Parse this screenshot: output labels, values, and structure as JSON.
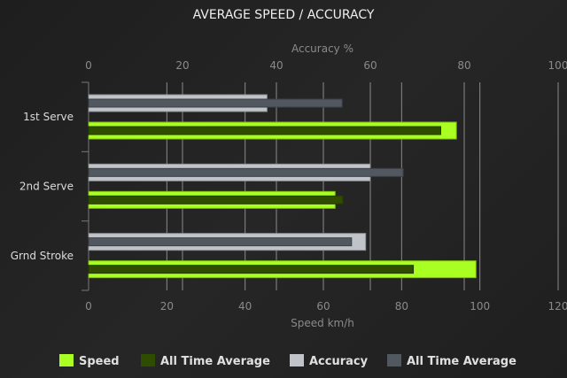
{
  "chart_data": {
    "type": "bar",
    "orientation": "horizontal",
    "title": "AVERAGE SPEED / ACCURACY",
    "categories": [
      "1st Serve",
      "2nd Serve",
      "Grnd Stroke"
    ],
    "x_axis_bottom": {
      "label": "Speed km/h",
      "range": [
        0,
        120
      ],
      "ticks": [
        0,
        20,
        40,
        60,
        80,
        100,
        120
      ]
    },
    "x_axis_top": {
      "label": "Accuracy %",
      "range": [
        0,
        100
      ],
      "ticks": [
        0,
        20,
        40,
        60,
        80,
        100
      ]
    },
    "grid": true,
    "legend_position": "bottom",
    "series": [
      {
        "name": "Speed",
        "axis": "bottom",
        "color": "#aaff22",
        "values": [
          94,
          63,
          99
        ]
      },
      {
        "name": "All Time Average",
        "axis": "bottom",
        "color": "#2f4d00",
        "values": [
          90,
          65,
          83
        ]
      },
      {
        "name": "Accuracy",
        "axis": "top",
        "color": "#c0c4c8",
        "values": [
          38,
          60,
          59
        ]
      },
      {
        "name": "All Time Average",
        "axis": "top",
        "color": "#525860",
        "values": [
          54,
          67,
          56
        ]
      }
    ]
  }
}
